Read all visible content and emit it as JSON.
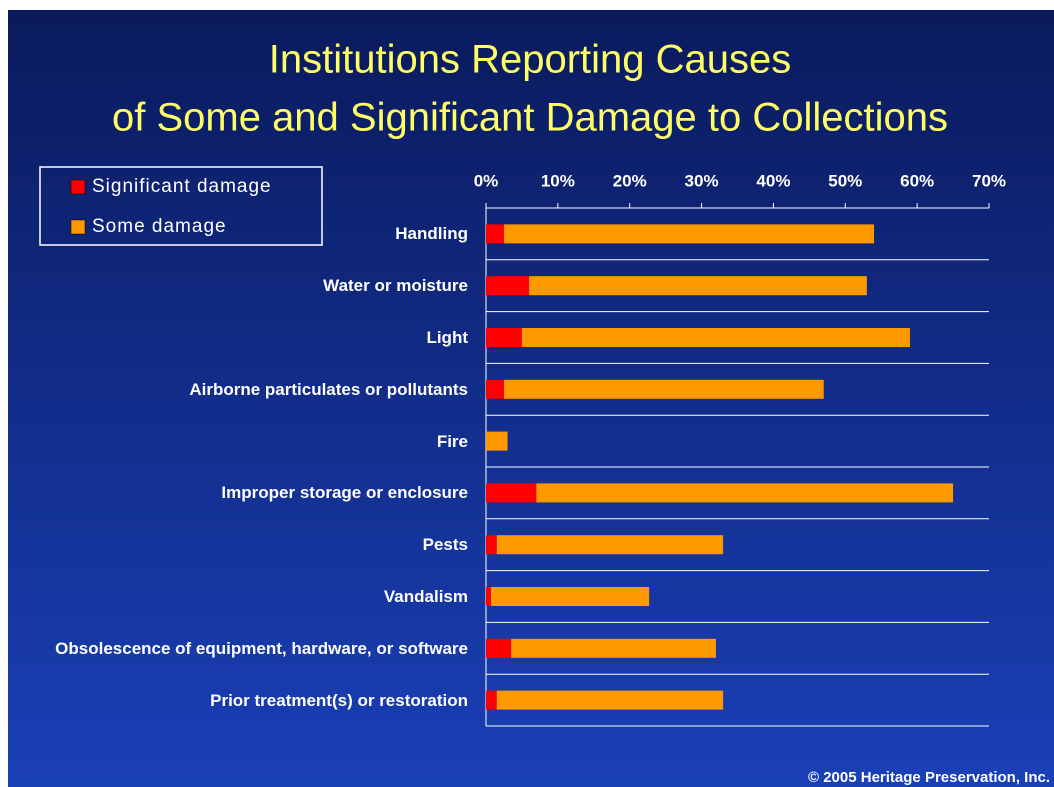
{
  "chart_data": {
    "type": "stacked_barh",
    "title": [
      "Institutions Reporting Causes",
      "of Some and Significant Damage to Collections"
    ],
    "categories": [
      "Handling",
      "Water or moisture",
      "Light",
      "Airborne particulates or pollutants",
      "Fire",
      "Improper storage or enclosure",
      "Pests",
      "Vandalism",
      "Obsolescence of equipment, hardware, or software",
      "Prior treatment(s) or restoration"
    ],
    "series": [
      {
        "name": "Significant damage",
        "color": "#ff0000",
        "values": [
          2.5,
          6,
          5,
          2.5,
          0,
          7,
          1.5,
          0.7,
          3.5,
          1.5
        ]
      },
      {
        "name": "Some damage",
        "color": "#ff9900",
        "values": [
          51.5,
          47,
          54,
          44.5,
          3,
          58,
          31.5,
          22,
          28.5,
          31.5
        ]
      }
    ],
    "xlim": [
      0,
      70
    ],
    "xticks": [
      {
        "value": 0,
        "label": "0%"
      },
      {
        "value": 10,
        "label": "10%"
      },
      {
        "value": 20,
        "label": "20%"
      },
      {
        "value": 30,
        "label": "30%"
      },
      {
        "value": 40,
        "label": "40%"
      },
      {
        "value": 50,
        "label": "50%"
      },
      {
        "value": 60,
        "label": "60%"
      },
      {
        "value": 70,
        "label": "70%"
      }
    ],
    "grid": true,
    "legend": "top-left",
    "footer": "© 2005 Heritage Preservation, Inc."
  }
}
